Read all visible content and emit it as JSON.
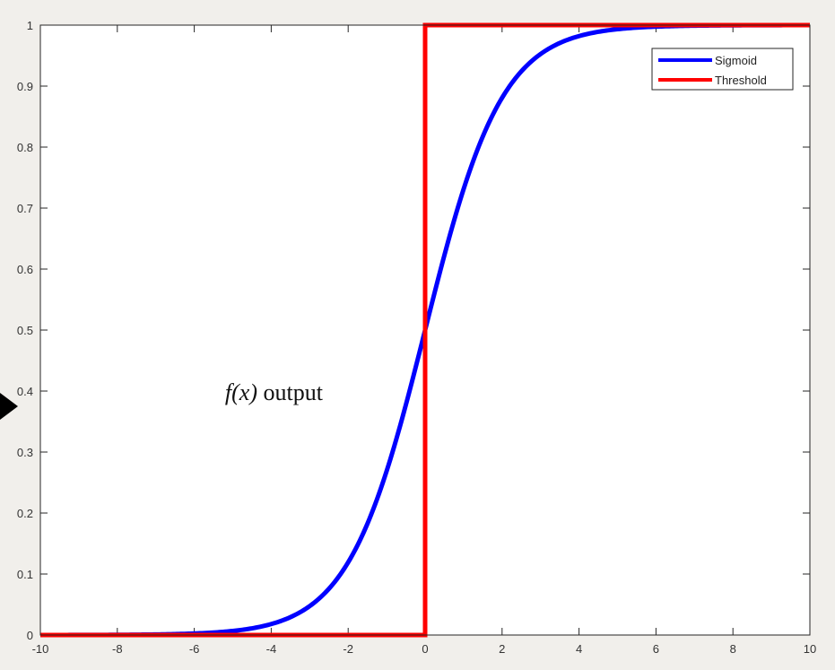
{
  "chart_data": {
    "type": "line",
    "xlim": [
      -10,
      10
    ],
    "ylim": [
      0,
      1
    ],
    "xticks": [
      -10,
      -8,
      -6,
      -4,
      -2,
      0,
      2,
      4,
      6,
      8,
      10
    ],
    "yticks": [
      0,
      0.1,
      0.2,
      0.3,
      0.4,
      0.5,
      0.6,
      0.7,
      0.8,
      0.9,
      1
    ],
    "grid": false,
    "legend_position": "top-right",
    "series": [
      {
        "name": "Sigmoid",
        "color": "#0000ff",
        "x": [
          -10,
          -9,
          -8,
          -7,
          -6,
          -5,
          -4,
          -3,
          -2.5,
          -2,
          -1.5,
          -1,
          -0.5,
          0,
          0.5,
          1,
          1.5,
          2,
          2.5,
          3,
          4,
          5,
          6,
          7,
          8,
          9,
          10
        ],
        "y": [
          4.54e-05,
          0.0001234,
          0.0003354,
          0.000911,
          0.002473,
          0.006693,
          0.017986,
          0.047426,
          0.075858,
          0.119203,
          0.182426,
          0.268941,
          0.377541,
          0.5,
          0.622459,
          0.731059,
          0.817574,
          0.880797,
          0.924142,
          0.952574,
          0.982014,
          0.993307,
          0.997527,
          0.999089,
          0.999665,
          0.999877,
          0.999955
        ]
      },
      {
        "name": "Threshold",
        "color": "#ff0000",
        "x": [
          -10,
          0,
          0,
          0.1,
          10
        ],
        "y": [
          0,
          0,
          1,
          1,
          1
        ]
      }
    ],
    "annotation": {
      "func": "f(x)",
      "rest": " output",
      "x": -5.2,
      "y": 0.385
    },
    "marker": "arrow-right-marker"
  }
}
